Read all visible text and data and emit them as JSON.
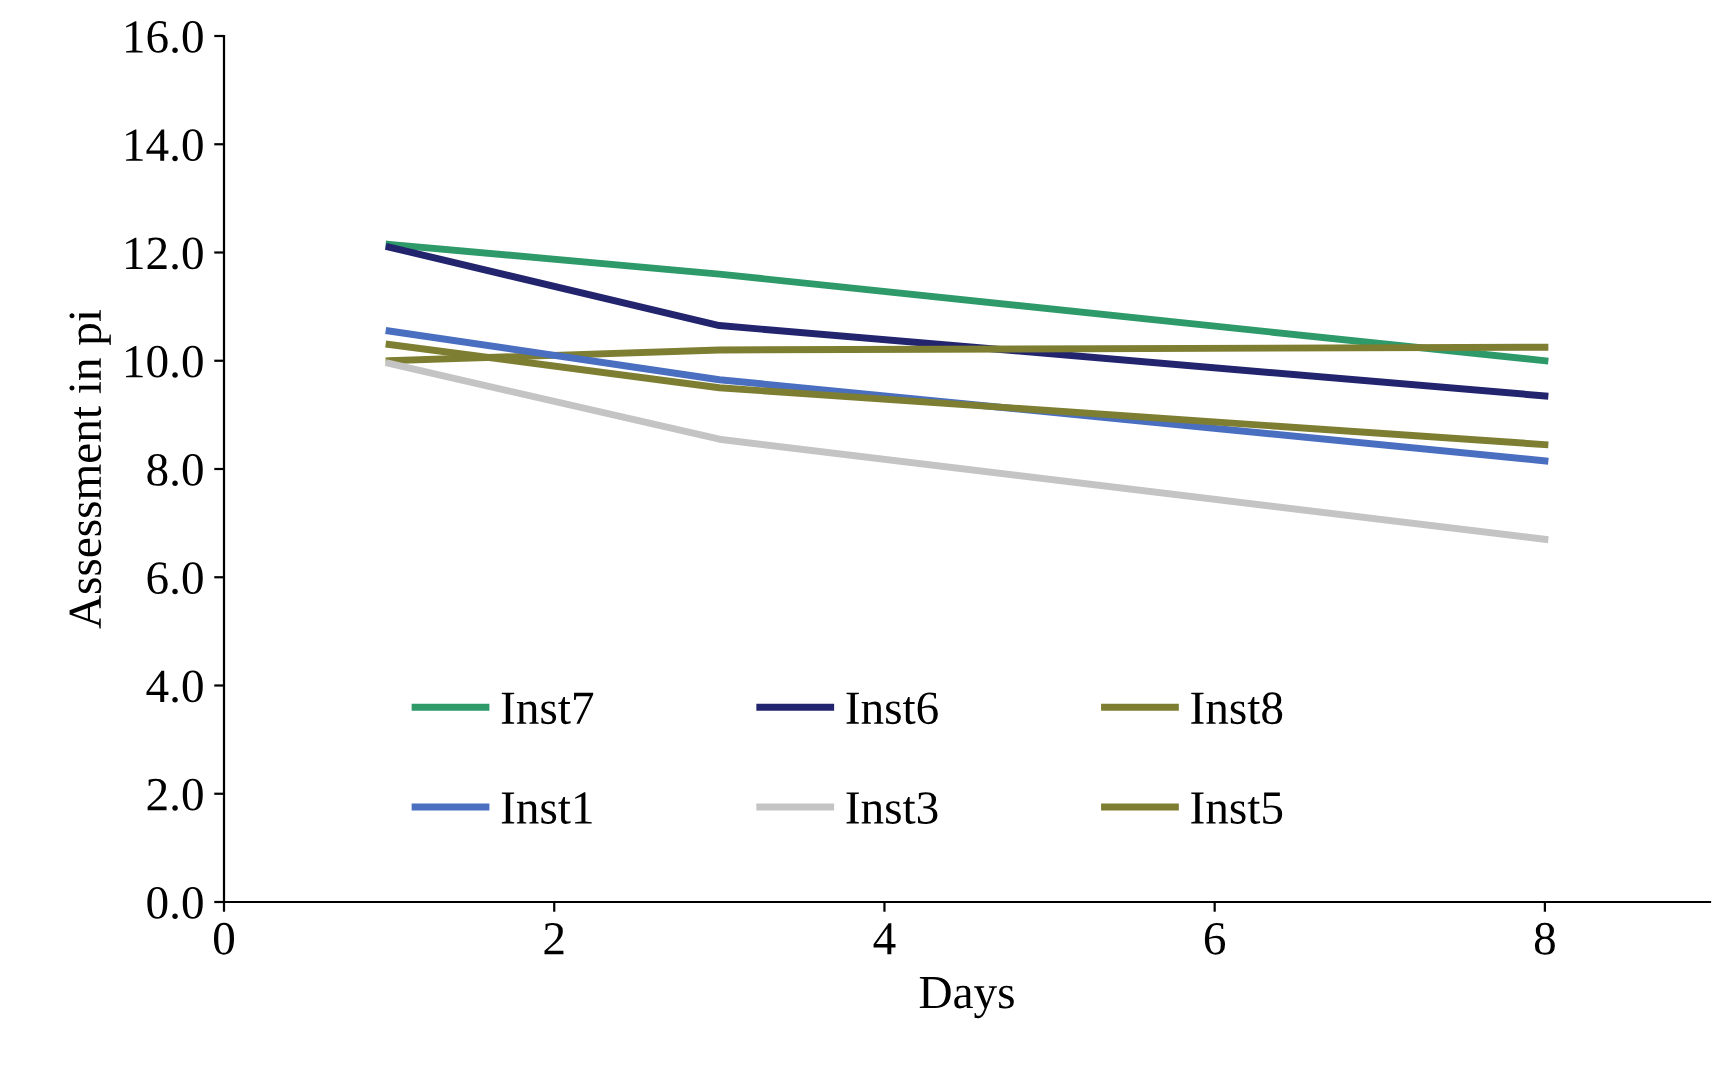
{
  "chart_data": {
    "type": "line",
    "xlabel": "Days",
    "ylabel": "Assessment in pi",
    "xlim": [
      0,
      9
    ],
    "xticks": [
      0,
      2,
      4,
      6,
      8
    ],
    "ylim": [
      0,
      16
    ],
    "yticks": [
      {
        "value": 0,
        "label": "0.0"
      },
      {
        "value": 2,
        "label": "2.0"
      },
      {
        "value": 4,
        "label": "4.0"
      },
      {
        "value": 6,
        "label": "6.0"
      },
      {
        "value": 8,
        "label": "8.0"
      },
      {
        "value": 10,
        "label": "10.0"
      },
      {
        "value": 12,
        "label": "12.0"
      },
      {
        "value": 14,
        "label": "14.0"
      },
      {
        "value": 16,
        "label": "16.0"
      }
    ],
    "x": [
      1,
      3,
      8
    ],
    "grid": false,
    "legend": "bottom left",
    "marker": "none",
    "line_style": "solid",
    "series": [
      {
        "name": "Inst7",
        "color": "#2e9a6a",
        "values": [
          12.15,
          11.6,
          10.0
        ]
      },
      {
        "name": "Inst6",
        "color": "#22246e",
        "values": [
          12.1,
          10.65,
          9.35
        ]
      },
      {
        "name": "Inst8",
        "color": "#7e7e32",
        "values": [
          10.0,
          10.2,
          10.25
        ]
      },
      {
        "name": "Inst1",
        "color": "#4a6fc0",
        "values": [
          10.55,
          9.65,
          8.15
        ]
      },
      {
        "name": "Inst3",
        "color": "#c4c4c4",
        "values": [
          9.95,
          8.55,
          6.7
        ]
      },
      {
        "name": "Inst5",
        "color": "#7e7e32",
        "values": [
          10.3,
          9.5,
          8.45
        ]
      }
    ]
  }
}
